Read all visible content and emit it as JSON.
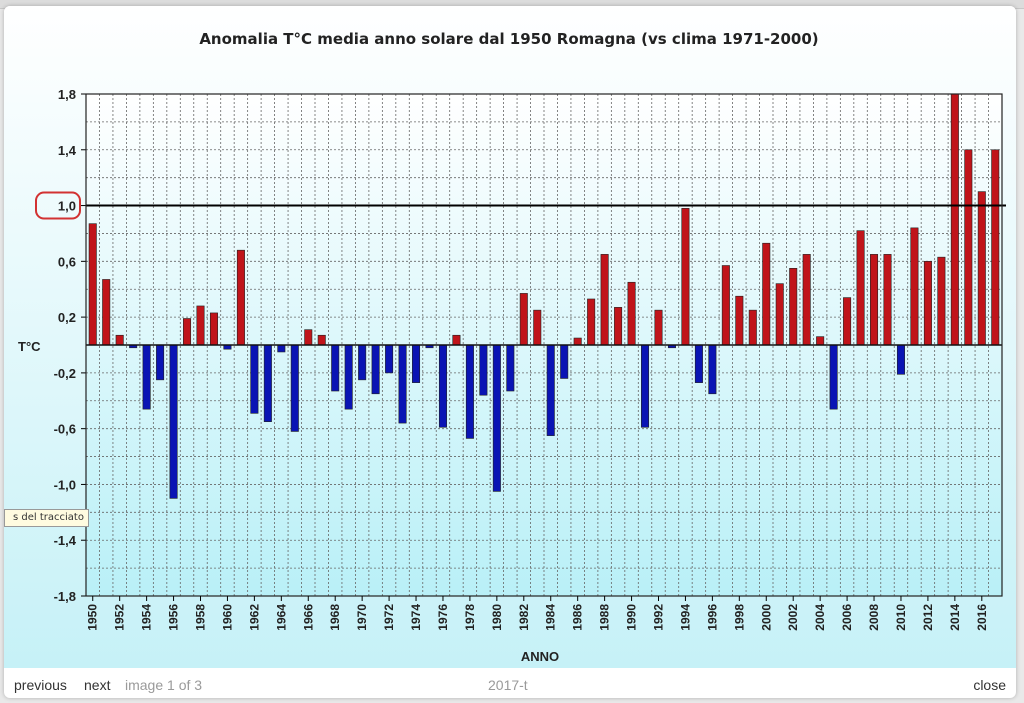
{
  "lightbox": {
    "previous_label": "previous",
    "next_label": "next",
    "counter_text": "image 1 of 3",
    "caption": "2017-t",
    "close_label": "close",
    "tooltip_text": "s del tracciato"
  },
  "colors": {
    "positive_bar": "#c0141a",
    "negative_bar": "#0a14b4",
    "plot_top": "#ffffff",
    "plot_bottom": "#b9f0f7",
    "highlight_circle": "#d23232"
  },
  "chart_data": {
    "type": "bar",
    "title": "Anomalia T°C media anno solare dal 1950 Romagna (vs clima 1971-2000)",
    "xlabel": "ANNO",
    "ylabel": "T°C",
    "ylim": [
      -1.8,
      1.8
    ],
    "yticks": [
      1.8,
      1.4,
      1.0,
      0.6,
      0.2,
      -0.2,
      -0.6,
      -1.0,
      -1.4,
      -1.8
    ],
    "ytick_labels": [
      "1,8",
      "1,4",
      "1,0",
      "0,6",
      "0,2",
      "-0,2",
      "-0,6",
      "-1,0",
      "-1,4",
      "-1,8"
    ],
    "highlighted_tick": "1,0",
    "reference_line": 1.0,
    "grid": true,
    "x_tick_labels": [
      "1950",
      "1952",
      "1954",
      "1956",
      "1958",
      "1960",
      "1962",
      "1964",
      "1966",
      "1968",
      "1970",
      "1972",
      "1974",
      "1976",
      "1978",
      "1980",
      "1982",
      "1984",
      "1986",
      "1988",
      "1990",
      "1992",
      "1994",
      "1996",
      "1998",
      "2000",
      "2002",
      "2004",
      "2006",
      "2008",
      "2010",
      "2012",
      "2014",
      "2016"
    ],
    "categories": [
      1950,
      1951,
      1952,
      1953,
      1954,
      1955,
      1956,
      1957,
      1958,
      1959,
      1960,
      1961,
      1962,
      1963,
      1964,
      1965,
      1966,
      1967,
      1968,
      1969,
      1970,
      1971,
      1972,
      1973,
      1974,
      1975,
      1976,
      1977,
      1978,
      1979,
      1980,
      1981,
      1982,
      1983,
      1984,
      1985,
      1986,
      1987,
      1988,
      1989,
      1990,
      1991,
      1992,
      1993,
      1994,
      1995,
      1996,
      1997,
      1998,
      1999,
      2000,
      2001,
      2002,
      2003,
      2004,
      2005,
      2006,
      2007,
      2008,
      2009,
      2010,
      2011,
      2012,
      2013,
      2014,
      2015,
      2016,
      2017
    ],
    "values": [
      0.87,
      0.47,
      0.07,
      -0.02,
      -0.46,
      -0.25,
      -1.1,
      0.19,
      0.28,
      0.23,
      -0.03,
      0.68,
      -0.49,
      -0.55,
      -0.05,
      -0.62,
      0.11,
      0.07,
      -0.33,
      -0.46,
      -0.25,
      -0.35,
      -0.2,
      -0.56,
      -0.27,
      -0.02,
      -0.59,
      0.07,
      -0.67,
      -0.36,
      -1.05,
      -0.33,
      0.37,
      0.25,
      -0.65,
      -0.24,
      0.05,
      0.33,
      0.65,
      0.27,
      0.45,
      -0.59,
      0.25,
      -0.02,
      0.98,
      -0.27,
      -0.35,
      0.57,
      0.35,
      0.25,
      0.73,
      0.44,
      0.55,
      0.65,
      0.06,
      -0.46,
      0.34,
      0.82,
      0.65,
      0.65,
      -0.21,
      0.84,
      0.6,
      0.63,
      1.8,
      1.4,
      1.1,
      1.4
    ]
  }
}
